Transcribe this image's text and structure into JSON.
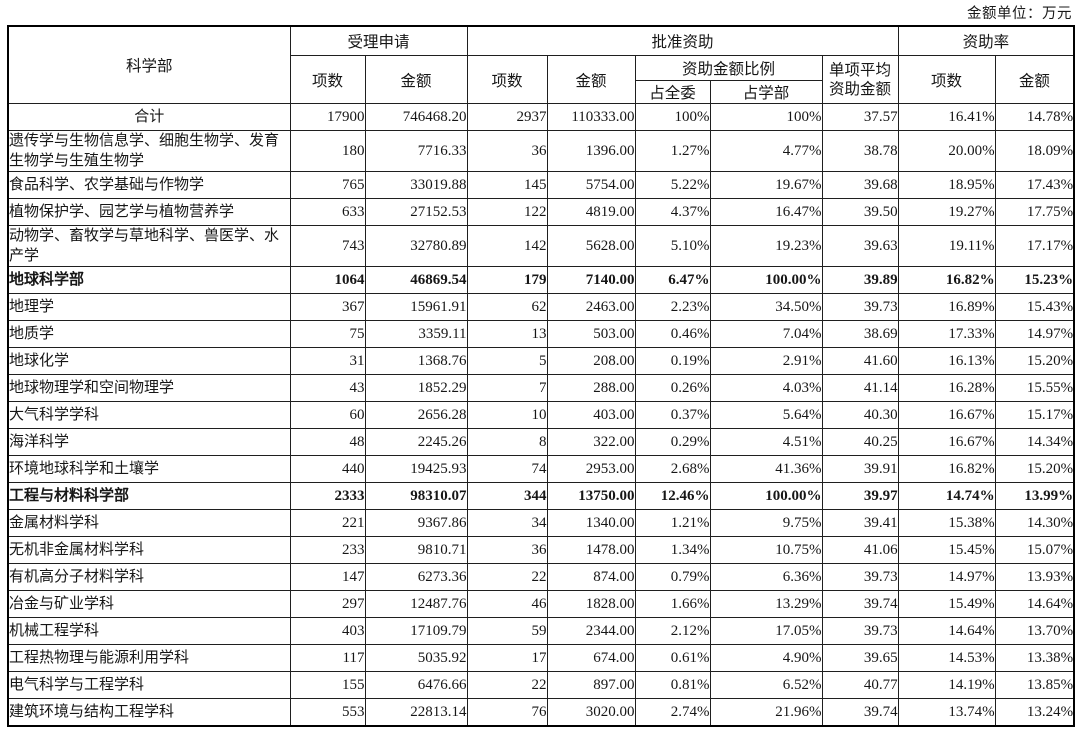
{
  "page": {
    "unit_note": "金额单位：万元"
  },
  "table": {
    "headers": {
      "department": "科学部",
      "accepted": {
        "label": "受理申请",
        "count": "项数",
        "amount": "金额"
      },
      "approved": {
        "label": "批准资助",
        "count": "项数",
        "amount": "金额",
        "ratio": {
          "label": "资助金额比例",
          "committee": "占全委",
          "division": "占学部"
        },
        "avg_line1": "单项平均",
        "avg_line2": "资助金额"
      },
      "rate": {
        "label": "资助率",
        "count": "项数",
        "amount": "金额"
      }
    },
    "rows": [
      {
        "dept": "合计",
        "style": "total",
        "values": [
          "17900",
          "746468.20",
          "2937",
          "110333.00",
          "100%",
          "100%",
          "37.57",
          "16.41%",
          "14.78%"
        ]
      },
      {
        "dept": "遗传学与生物信息学、细胞生物学、发育生物学与生殖生物学",
        "style": "normal",
        "values": [
          "180",
          "7716.33",
          "36",
          "1396.00",
          "1.27%",
          "4.77%",
          "38.78",
          "20.00%",
          "18.09%"
        ]
      },
      {
        "dept": "食品科学、农学基础与作物学",
        "style": "normal",
        "values": [
          "765",
          "33019.88",
          "145",
          "5754.00",
          "5.22%",
          "19.67%",
          "39.68",
          "18.95%",
          "17.43%"
        ]
      },
      {
        "dept": "植物保护学、园艺学与植物营养学",
        "style": "normal",
        "values": [
          "633",
          "27152.53",
          "122",
          "4819.00",
          "4.37%",
          "16.47%",
          "39.50",
          "19.27%",
          "17.75%"
        ]
      },
      {
        "dept": "动物学、畜牧学与草地科学、兽医学、水产学",
        "style": "normal",
        "values": [
          "743",
          "32780.89",
          "142",
          "5628.00",
          "5.10%",
          "19.23%",
          "39.63",
          "19.11%",
          "17.17%"
        ]
      },
      {
        "dept": "地球科学部",
        "style": "section",
        "values": [
          "1064",
          "46869.54",
          "179",
          "7140.00",
          "6.47%",
          "100.00%",
          "39.89",
          "16.82%",
          "15.23%"
        ]
      },
      {
        "dept": "地理学",
        "style": "normal",
        "values": [
          "367",
          "15961.91",
          "62",
          "2463.00",
          "2.23%",
          "34.50%",
          "39.73",
          "16.89%",
          "15.43%"
        ]
      },
      {
        "dept": "地质学",
        "style": "normal",
        "values": [
          "75",
          "3359.11",
          "13",
          "503.00",
          "0.46%",
          "7.04%",
          "38.69",
          "17.33%",
          "14.97%"
        ]
      },
      {
        "dept": "地球化学",
        "style": "normal",
        "values": [
          "31",
          "1368.76",
          "5",
          "208.00",
          "0.19%",
          "2.91%",
          "41.60",
          "16.13%",
          "15.20%"
        ]
      },
      {
        "dept": "地球物理学和空间物理学",
        "style": "normal",
        "values": [
          "43",
          "1852.29",
          "7",
          "288.00",
          "0.26%",
          "4.03%",
          "41.14",
          "16.28%",
          "15.55%"
        ]
      },
      {
        "dept": "大气科学学科",
        "style": "normal",
        "values": [
          "60",
          "2656.28",
          "10",
          "403.00",
          "0.37%",
          "5.64%",
          "40.30",
          "16.67%",
          "15.17%"
        ]
      },
      {
        "dept": "海洋科学",
        "style": "normal",
        "values": [
          "48",
          "2245.26",
          "8",
          "322.00",
          "0.29%",
          "4.51%",
          "40.25",
          "16.67%",
          "14.34%"
        ]
      },
      {
        "dept": "环境地球科学和土壤学",
        "style": "normal",
        "values": [
          "440",
          "19425.93",
          "74",
          "2953.00",
          "2.68%",
          "41.36%",
          "39.91",
          "16.82%",
          "15.20%"
        ]
      },
      {
        "dept": "工程与材料科学部",
        "style": "section",
        "values": [
          "2333",
          "98310.07",
          "344",
          "13750.00",
          "12.46%",
          "100.00%",
          "39.97",
          "14.74%",
          "13.99%"
        ]
      },
      {
        "dept": "金属材料学科",
        "style": "normal",
        "values": [
          "221",
          "9367.86",
          "34",
          "1340.00",
          "1.21%",
          "9.75%",
          "39.41",
          "15.38%",
          "14.30%"
        ]
      },
      {
        "dept": "无机非金属材料学科",
        "style": "normal",
        "values": [
          "233",
          "9810.71",
          "36",
          "1478.00",
          "1.34%",
          "10.75%",
          "41.06",
          "15.45%",
          "15.07%"
        ]
      },
      {
        "dept": "有机高分子材料学科",
        "style": "normal",
        "values": [
          "147",
          "6273.36",
          "22",
          "874.00",
          "0.79%",
          "6.36%",
          "39.73",
          "14.97%",
          "13.93%"
        ]
      },
      {
        "dept": "冶金与矿业学科",
        "style": "normal",
        "values": [
          "297",
          "12487.76",
          "46",
          "1828.00",
          "1.66%",
          "13.29%",
          "39.74",
          "15.49%",
          "14.64%"
        ]
      },
      {
        "dept": "机械工程学科",
        "style": "normal",
        "values": [
          "403",
          "17109.79",
          "59",
          "2344.00",
          "2.12%",
          "17.05%",
          "39.73",
          "14.64%",
          "13.70%"
        ]
      },
      {
        "dept": "工程热物理与能源利用学科",
        "style": "normal",
        "values": [
          "117",
          "5035.92",
          "17",
          "674.00",
          "0.61%",
          "4.90%",
          "39.65",
          "14.53%",
          "13.38%"
        ]
      },
      {
        "dept": "电气科学与工程学科",
        "style": "normal",
        "values": [
          "155",
          "6476.66",
          "22",
          "897.00",
          "0.81%",
          "6.52%",
          "40.77",
          "14.19%",
          "13.85%"
        ]
      },
      {
        "dept": "建筑环境与结构工程学科",
        "style": "normal",
        "values": [
          "553",
          "22813.14",
          "76",
          "3020.00",
          "2.74%",
          "21.96%",
          "39.74",
          "13.74%",
          "13.24%"
        ]
      }
    ]
  }
}
